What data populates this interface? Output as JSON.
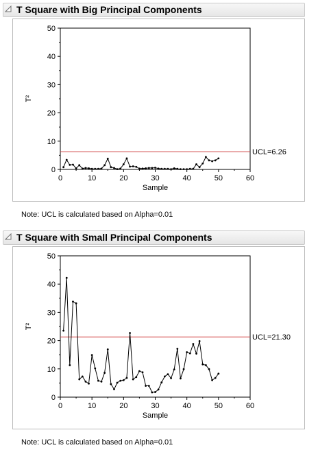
{
  "sections": [
    {
      "title": "T Square with Big Principal Components",
      "note": "Note: UCL is calculated based on Alpha=0.01",
      "ucl_label": "UCL=6.26"
    },
    {
      "title": "T Square with Small Principal Components",
      "note": "Note: UCL is calculated based on Alpha=0.01",
      "ucl_label": "UCL=21.30"
    }
  ],
  "icons": [
    "disclosure-triangle-icon"
  ],
  "colors": {
    "ucl_line": "#d04040",
    "series": "#000000",
    "header_bg": "#ececec"
  },
  "chart_data": [
    {
      "type": "line",
      "title": "T Square with Big Principal Components",
      "xlabel": "Sample",
      "ylabel": "T²",
      "xlim": [
        0,
        60
      ],
      "ylim": [
        0,
        50
      ],
      "xticks": [
        0,
        10,
        20,
        30,
        40,
        50,
        60
      ],
      "yticks": [
        0,
        10,
        20,
        30,
        40,
        50
      ],
      "ucl": 6.26,
      "x": [
        1,
        2,
        3,
        4,
        5,
        6,
        7,
        8,
        9,
        10,
        11,
        12,
        13,
        14,
        15,
        16,
        17,
        18,
        19,
        20,
        21,
        22,
        23,
        24,
        25,
        26,
        27,
        28,
        29,
        30,
        31,
        32,
        33,
        34,
        35,
        36,
        37,
        38,
        39,
        40,
        41,
        42,
        43,
        44,
        45,
        46,
        47,
        48,
        49,
        50
      ],
      "y": [
        0.8,
        3.4,
        1.6,
        1.7,
        0.4,
        1.5,
        0.3,
        0.5,
        0.4,
        0.2,
        0.2,
        0.2,
        0.3,
        1.5,
        3.8,
        0.8,
        0.5,
        0.1,
        0.3,
        1.8,
        3.9,
        1.0,
        1.1,
        0.9,
        0.3,
        0.3,
        0.4,
        0.5,
        0.5,
        0.6,
        0.3,
        0.2,
        0.2,
        0.2,
        0.1,
        0.4,
        0.2,
        0.1,
        0.1,
        0.1,
        0.2,
        0.2,
        1.8,
        0.8,
        2.1,
        4.4,
        3.2,
        2.9,
        3.2,
        3.9
      ]
    },
    {
      "type": "line",
      "title": "T Square with Small Principal Components",
      "xlabel": "Sample",
      "ylabel": "T²",
      "xlim": [
        0,
        60
      ],
      "ylim": [
        0,
        50
      ],
      "xticks": [
        0,
        10,
        20,
        30,
        40,
        50,
        60
      ],
      "yticks": [
        0,
        10,
        20,
        30,
        40,
        50
      ],
      "ucl": 21.3,
      "x": [
        1,
        2,
        3,
        4,
        5,
        6,
        7,
        8,
        9,
        10,
        11,
        12,
        13,
        14,
        15,
        16,
        17,
        18,
        19,
        20,
        21,
        22,
        23,
        24,
        25,
        26,
        27,
        28,
        29,
        30,
        31,
        32,
        33,
        34,
        35,
        36,
        37,
        38,
        39,
        40,
        41,
        42,
        43,
        44,
        45,
        46,
        47,
        48,
        49,
        50
      ],
      "y": [
        23.5,
        42.2,
        11.3,
        33.8,
        33.2,
        6.3,
        7.3,
        5.5,
        4.8,
        14.9,
        10.2,
        5.8,
        5.5,
        8.6,
        16.9,
        4.6,
        2.8,
        5.1,
        5.8,
        6.0,
        6.8,
        22.7,
        6.3,
        7.1,
        9.2,
        8.8,
        4.0,
        4.0,
        1.7,
        1.8,
        2.7,
        5.2,
        7.3,
        8.1,
        6.7,
        9.8,
        17.1,
        6.6,
        9.9,
        15.9,
        15.5,
        18.8,
        15.4,
        19.8,
        11.6,
        11.3,
        9.9,
        6.0,
        6.8,
        8.3
      ]
    }
  ]
}
